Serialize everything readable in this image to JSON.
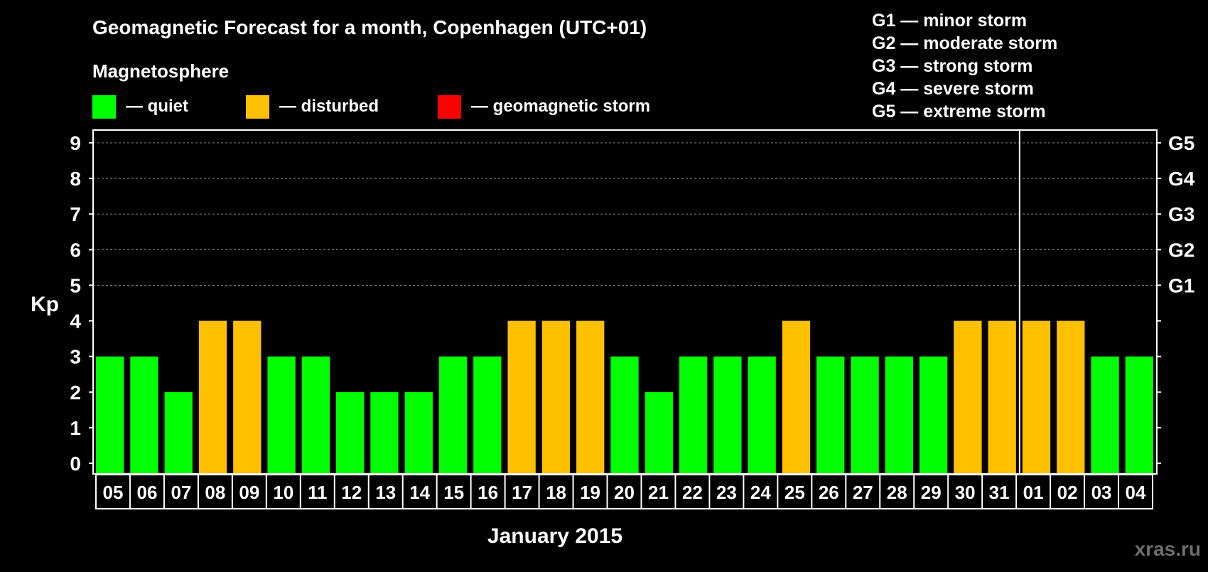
{
  "header": {
    "title": "Geomagnetic Forecast for a month, Copenhagen (UTC+01)",
    "subtitle": "Magnetosphere",
    "watermark": "xras.ru"
  },
  "legend": [
    {
      "label": "— quiet",
      "color": "#00ff00"
    },
    {
      "label": "— disturbed",
      "color": "#ffc000"
    },
    {
      "label": "— geomagnetic storm",
      "color": "#ff0000"
    }
  ],
  "storm_scale": [
    "G1 — minor storm",
    "G2 — moderate storm",
    "G3 — strong storm",
    "G4 — severe storm",
    "G5 — extreme storm"
  ],
  "chart_data": {
    "type": "bar",
    "title": "Geomagnetic Forecast for a month, Copenhagen (UTC+01)",
    "xlabel": "January 2015",
    "ylabel": "Kp",
    "ylim": [
      0,
      9
    ],
    "yticks": [
      "0",
      "1",
      "2",
      "3",
      "4",
      "5",
      "6",
      "7",
      "8",
      "9"
    ],
    "right_ticks": [
      {
        "kp": 5,
        "label": "G1"
      },
      {
        "kp": 6,
        "label": "G2"
      },
      {
        "kp": 7,
        "label": "G3"
      },
      {
        "kp": 8,
        "label": "G4"
      },
      {
        "kp": 9,
        "label": "G5"
      }
    ],
    "month_boundary_after": "31",
    "categories": [
      "05",
      "06",
      "07",
      "08",
      "09",
      "10",
      "11",
      "12",
      "13",
      "14",
      "15",
      "16",
      "17",
      "18",
      "19",
      "20",
      "21",
      "22",
      "23",
      "24",
      "25",
      "26",
      "27",
      "28",
      "29",
      "30",
      "31",
      "01",
      "02",
      "03",
      "04"
    ],
    "values": [
      3,
      3,
      2,
      4,
      4,
      3,
      3,
      2,
      2,
      2,
      3,
      3,
      4,
      4,
      4,
      3,
      2,
      3,
      3,
      3,
      4,
      3,
      3,
      3,
      3,
      4,
      4,
      4,
      4,
      3,
      3
    ],
    "status": [
      "quiet",
      "quiet",
      "quiet",
      "disturbed",
      "disturbed",
      "quiet",
      "quiet",
      "quiet",
      "quiet",
      "quiet",
      "quiet",
      "quiet",
      "disturbed",
      "disturbed",
      "disturbed",
      "quiet",
      "quiet",
      "quiet",
      "quiet",
      "quiet",
      "disturbed",
      "quiet",
      "quiet",
      "quiet",
      "quiet",
      "disturbed",
      "disturbed",
      "disturbed",
      "disturbed",
      "quiet",
      "quiet"
    ],
    "status_colors": {
      "quiet": "#00ff00",
      "disturbed": "#ffc000",
      "storm": "#ff0000"
    }
  }
}
